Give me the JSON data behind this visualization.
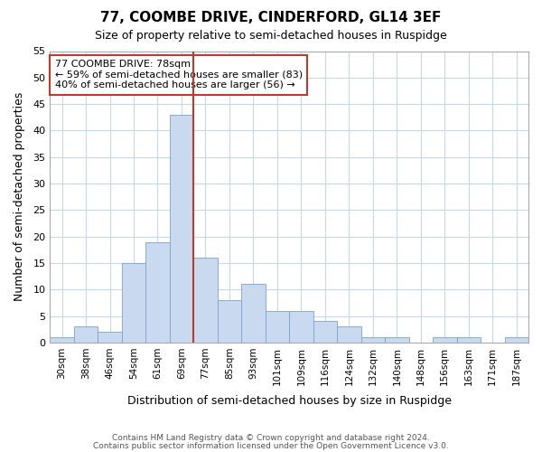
{
  "title": "77, COOMBE DRIVE, CINDERFORD, GL14 3EF",
  "subtitle": "Size of property relative to semi-detached houses in Ruspidge",
  "xlabel": "Distribution of semi-detached houses by size in Ruspidge",
  "ylabel": "Number of semi-detached properties",
  "bin_labels": [
    "30sqm",
    "38sqm",
    "46sqm",
    "54sqm",
    "61sqm",
    "69sqm",
    "77sqm",
    "85sqm",
    "93sqm",
    "101sqm",
    "109sqm",
    "116sqm",
    "124sqm",
    "132sqm",
    "140sqm",
    "148sqm",
    "156sqm",
    "163sqm",
    "171sqm",
    "187sqm"
  ],
  "bar_values": [
    1,
    3,
    2,
    15,
    19,
    43,
    16,
    8,
    11,
    6,
    6,
    4,
    3,
    1,
    1,
    0,
    1,
    1,
    0,
    1
  ],
  "highlight_index": 5,
  "highlight_line_index": 6,
  "bar_color_normal": "#c9d9ef",
  "bar_color_highlight": "#aec6e0",
  "bar_edge_color": "#7aa3cc",
  "annotation_title": "77 COOMBE DRIVE: 78sqm",
  "annotation_line1": "← 59% of semi-detached houses are smaller (83)",
  "annotation_line2": "40% of semi-detached houses are larger (56) →",
  "annotation_box_edge": "#c0392b",
  "highlight_line_color": "#c0392b",
  "ylim": [
    0,
    55
  ],
  "yticks": [
    0,
    5,
    10,
    15,
    20,
    25,
    30,
    35,
    40,
    45,
    50,
    55
  ],
  "footer1": "Contains HM Land Registry data © Crown copyright and database right 2024.",
  "footer2": "Contains public sector information licensed under the Open Government Licence v3.0.",
  "background_color": "#ffffff",
  "grid_color": "#c8d8ea"
}
